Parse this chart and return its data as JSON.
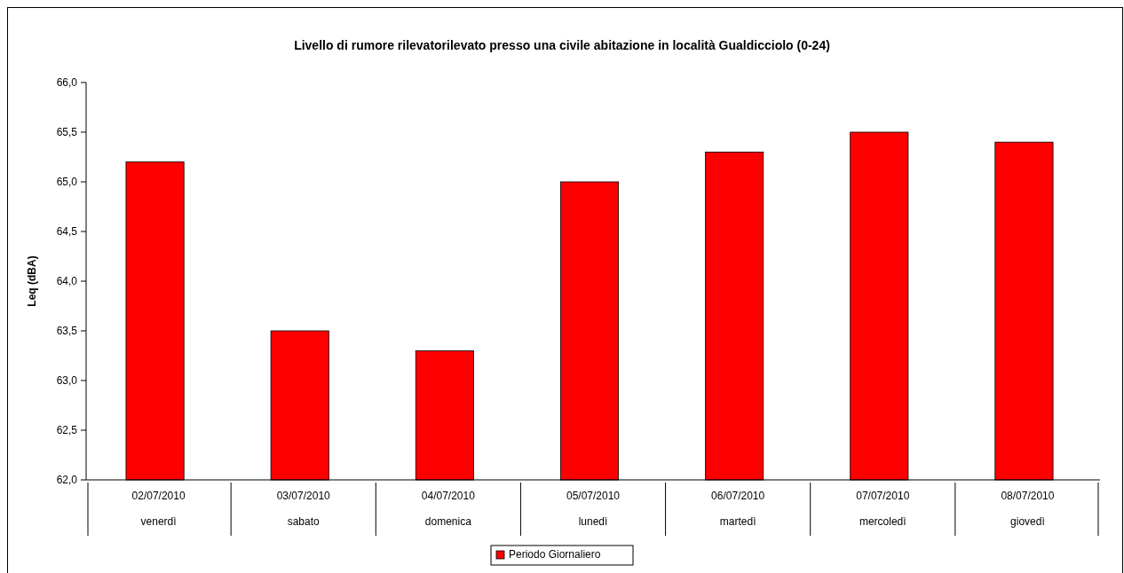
{
  "chart_data": {
    "type": "bar",
    "title": "Livello di rumore rilevatorilevato presso una civile abitazione in località Gualdicciolo (0-24)",
    "ylabel": "Leq (dBA)",
    "categories": [
      "02/07/2010\nvenerdì",
      "03/07/2010\nsabato",
      "04/07/2010\ndomenica",
      "05/07/2010\nlunedì",
      "06/07/2010\nmartedì",
      "07/07/2010\nmercoledì",
      "08/07/2010\ngiovedì"
    ],
    "series": [
      {
        "name": "Periodo Giornaliero",
        "color": "#ff0000",
        "values": [
          65.2,
          63.5,
          63.3,
          65.0,
          65.3,
          65.5,
          65.4
        ]
      }
    ],
    "ylim": [
      62,
      66
    ],
    "yticks": [
      {
        "value": 62,
        "label": "62,0"
      },
      {
        "value": 62.5,
        "label": "62,5"
      },
      {
        "value": 63,
        "label": "63,0"
      },
      {
        "value": 63.5,
        "label": "63,5"
      },
      {
        "value": 64,
        "label": "64,0"
      },
      {
        "value": 64.5,
        "label": "64,5"
      },
      {
        "value": 65,
        "label": "65,0"
      },
      {
        "value": 65.5,
        "label": "65,5"
      },
      {
        "value": 66,
        "label": "66,0"
      }
    ],
    "grid": false,
    "legend": "bottom"
  }
}
